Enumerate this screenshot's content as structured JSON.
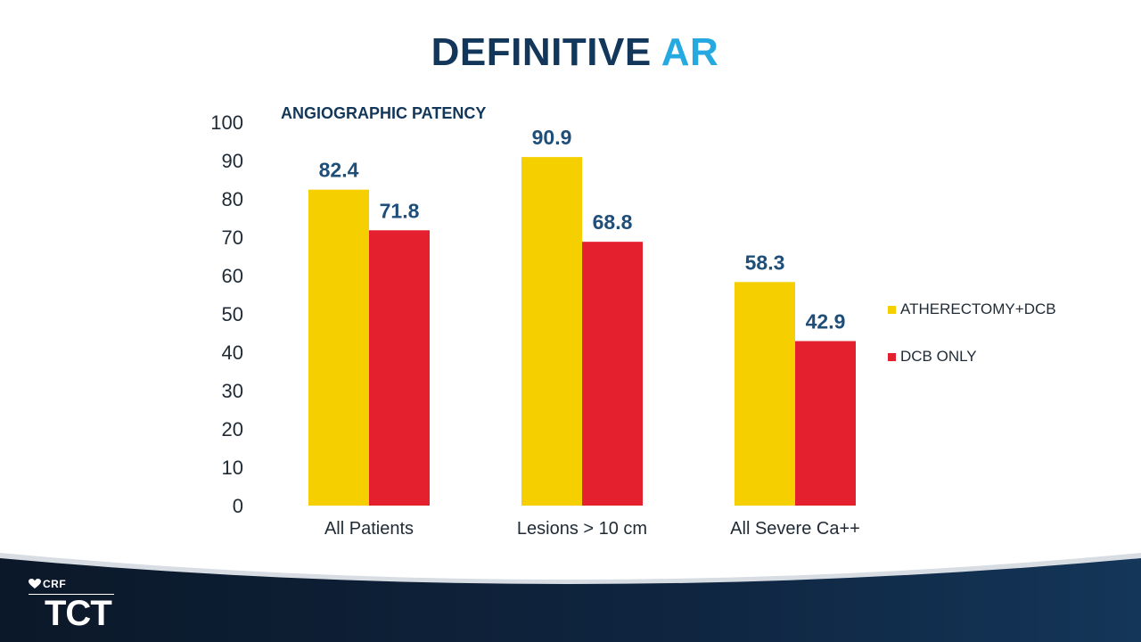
{
  "slide": {
    "title_main": "DEFINITIVE",
    "title_accent": "AR",
    "subtitle": "ANGIOGRAPHIC PATENCY"
  },
  "colors": {
    "title": "#12375a",
    "accent": "#25a9e0",
    "value_labels": "#1f4e79",
    "axis_text": "#1f2a35",
    "footer_dark": "#0c1b2e"
  },
  "logo": {
    "crf": "CRF",
    "tct": "TCT",
    "icon": "heart-icon"
  },
  "chart_data": {
    "type": "bar",
    "title": "ANGIOGRAPHIC PATENCY",
    "categories": [
      "All Patients",
      "Lesions > 10 cm",
      "All Severe Ca++"
    ],
    "series": [
      {
        "name": "ATHERECTOMY+DCB",
        "color": "#f5cf00",
        "values": [
          82.4,
          90.9,
          58.3
        ]
      },
      {
        "name": "DCB ONLY",
        "color": "#e5202e",
        "values": [
          71.8,
          68.8,
          42.9
        ]
      }
    ],
    "ylim": [
      0,
      100
    ],
    "yticks": [
      "0",
      "10",
      "20",
      "30",
      "40",
      "50",
      "60",
      "70",
      "80",
      "90",
      "100"
    ],
    "xlabel": "",
    "ylabel": "",
    "grid": false,
    "legend_position": "right"
  }
}
